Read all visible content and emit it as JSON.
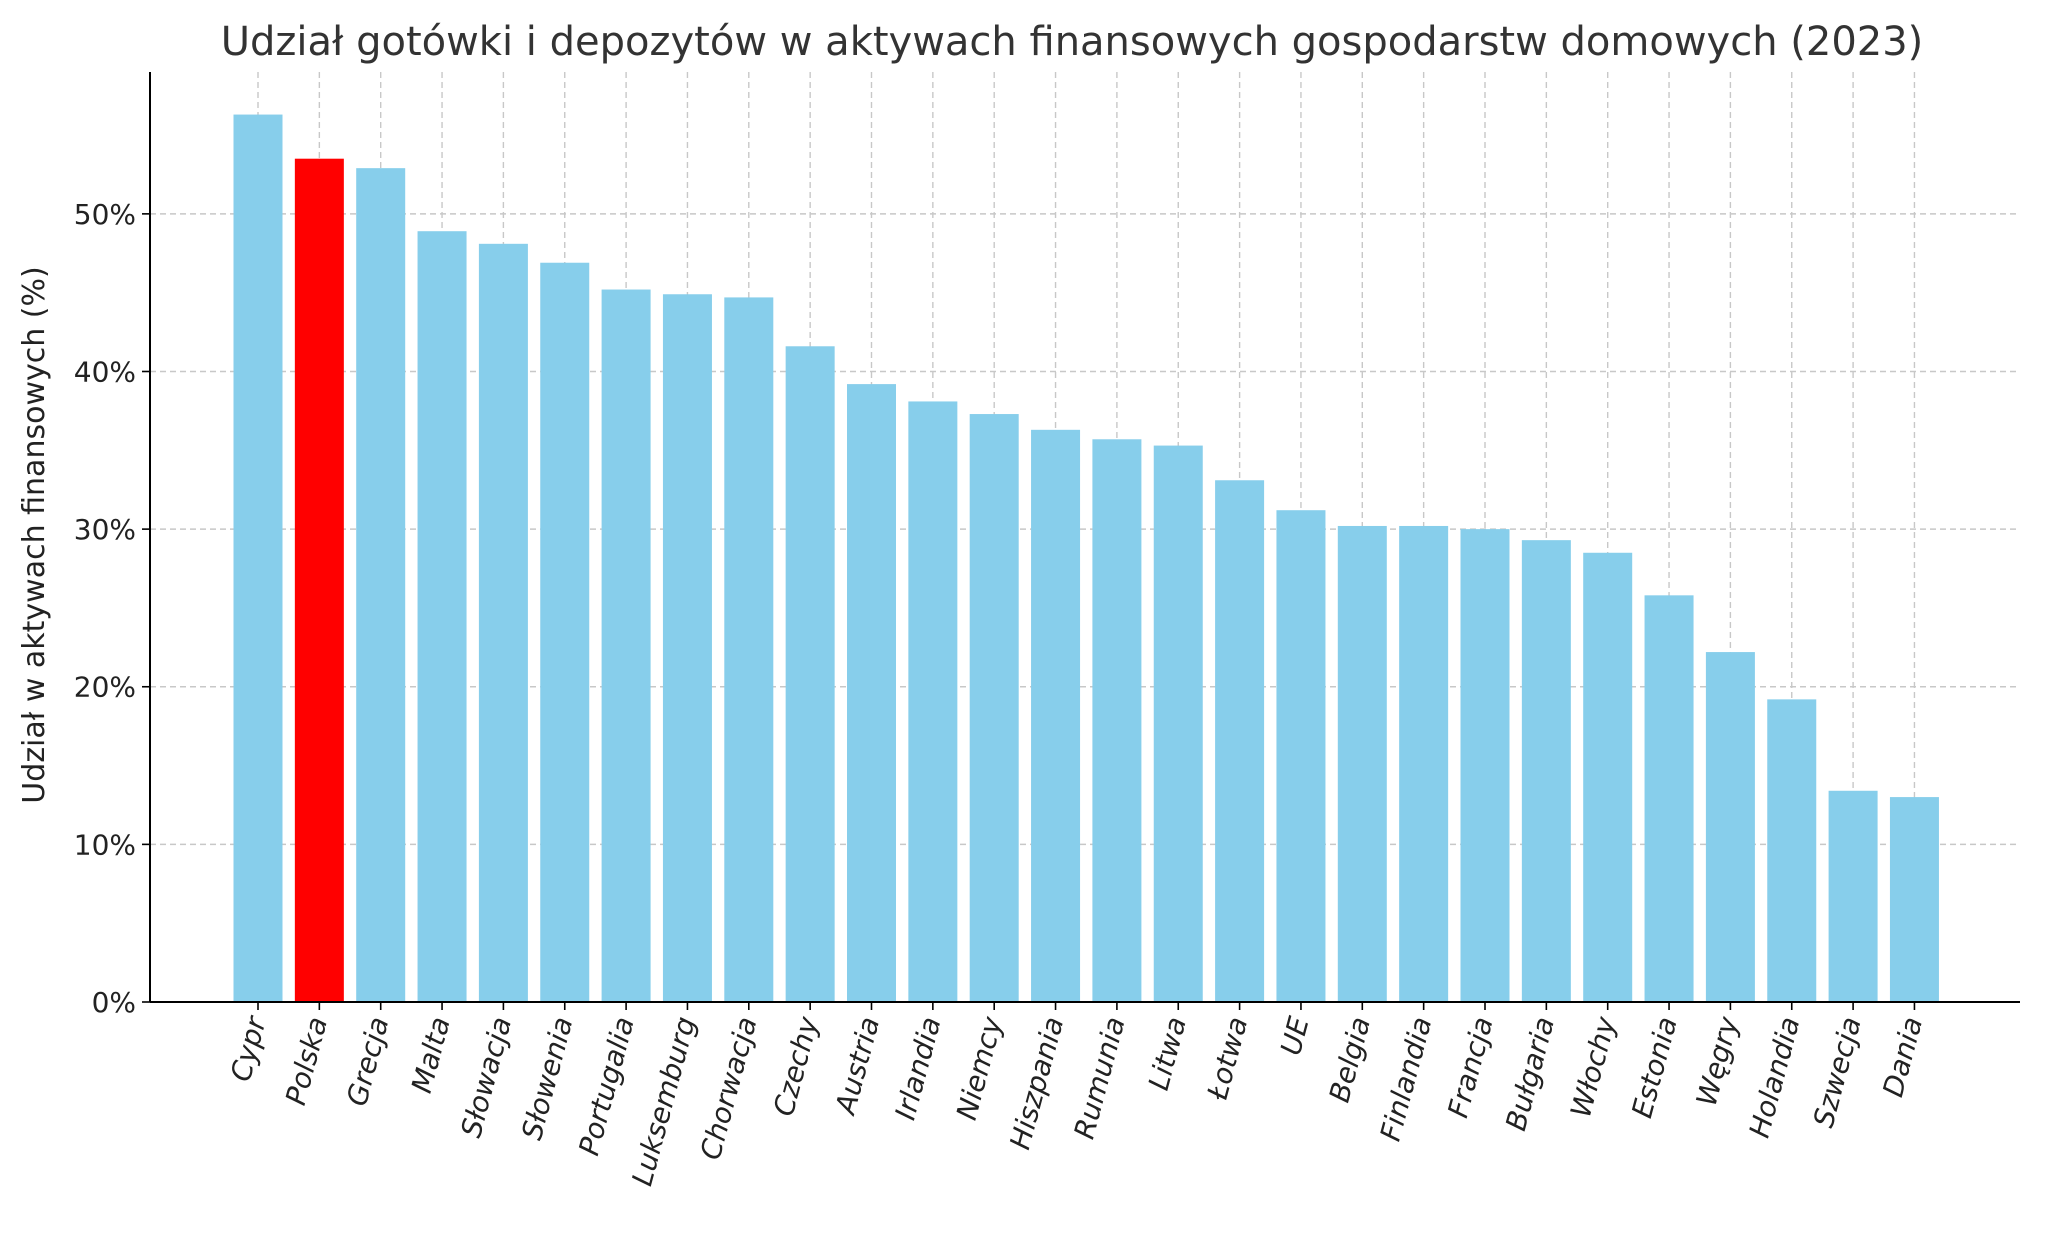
{
  "chart_data": {
    "type": "bar",
    "title": "Udział gotówki i depozytów w aktywach finansowych gospodarstw domowych (2023)",
    "xlabel": "",
    "ylabel": "Udział w aktywach finansowych (%)",
    "ylim": [
      0,
      59
    ],
    "yticks": [
      0,
      10,
      20,
      30,
      40,
      50
    ],
    "ytick_labels": [
      "0%",
      "10%",
      "20%",
      "30%",
      "40%",
      "50%"
    ],
    "grid": true,
    "categories": [
      "Cypr",
      "Polska",
      "Grecja",
      "Malta",
      "Słowacja",
      "Słowenia",
      "Portugalia",
      "Luksemburg",
      "Chorwacja",
      "Czechy",
      "Austria",
      "Irlandia",
      "Niemcy",
      "Hiszpania",
      "Rumunia",
      "Litwa",
      "Łotwa",
      "UE",
      "Belgia",
      "Finlandia",
      "Francja",
      "Bułgaria",
      "Włochy",
      "Estonia",
      "Węgry",
      "Holandia",
      "Szwecja",
      "Dania"
    ],
    "values": [
      56.3,
      53.5,
      52.9,
      48.9,
      48.1,
      46.9,
      45.2,
      44.9,
      44.7,
      41.6,
      39.2,
      38.1,
      37.3,
      36.3,
      35.7,
      35.3,
      33.1,
      31.2,
      30.2,
      30.2,
      30.0,
      29.3,
      28.5,
      25.8,
      22.2,
      19.2,
      13.4,
      13.0
    ],
    "colors": {
      "default": "#87ceeb",
      "highlight": "#ff0000",
      "highlight_category": "Polska"
    }
  }
}
